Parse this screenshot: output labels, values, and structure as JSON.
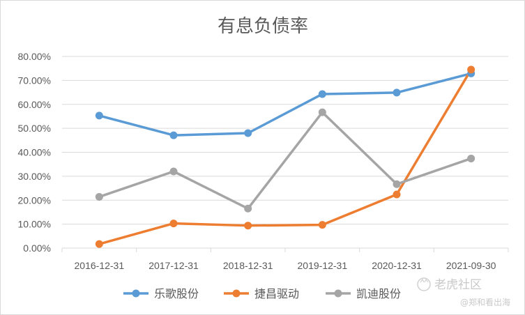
{
  "chart_data": {
    "type": "line",
    "title": "有息负债率",
    "categories": [
      "2016-12-31",
      "2017-12-31",
      "2018-12-31",
      "2019-12-31",
      "2020-12-31",
      "2021-09-30"
    ],
    "ylim": [
      0,
      80
    ],
    "yticks": [
      "0.00%",
      "10.00%",
      "20.00%",
      "30.00%",
      "40.00%",
      "50.00%",
      "60.00%",
      "70.00%",
      "80.00%"
    ],
    "y_unit": "%",
    "grid": true,
    "legend_position": "bottom",
    "series": [
      {
        "name": "乐歌股份",
        "color": "#5b9bd5",
        "values": [
          55.3,
          47.1,
          48.0,
          64.3,
          64.9,
          72.9
        ]
      },
      {
        "name": "捷昌驱动",
        "color": "#ed7d31",
        "values": [
          1.7,
          10.3,
          9.4,
          9.7,
          22.4,
          74.5
        ]
      },
      {
        "name": "凯迪股份",
        "color": "#a5a5a5",
        "values": [
          21.4,
          32.0,
          16.5,
          56.7,
          26.7,
          37.4
        ]
      }
    ]
  },
  "watermark": {
    "brand": "老虎社区",
    "handle": "@郑和看出海",
    "icon": "tiger-logo-icon"
  }
}
